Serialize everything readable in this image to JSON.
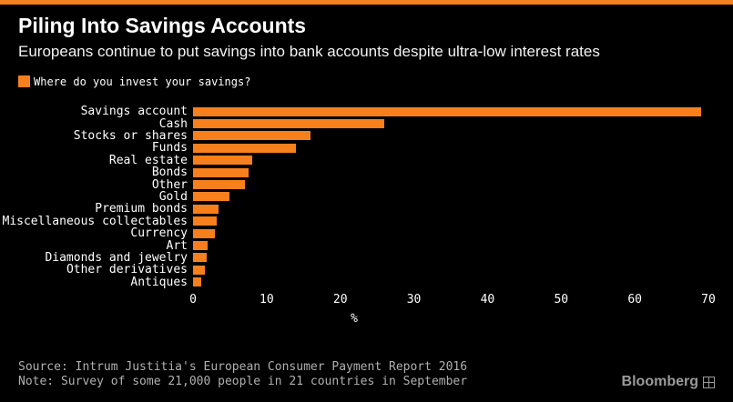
{
  "accent_color": "#f7801d",
  "background_color": "#000000",
  "header": {
    "title": "Piling Into Savings Accounts",
    "subtitle": "Europeans continue to put savings into bank accounts despite ultra-low interest rates"
  },
  "legend": {
    "label": "Where do you invest your savings?",
    "swatch_color": "#f7801d"
  },
  "chart_data": {
    "type": "bar",
    "orientation": "horizontal",
    "title": "Where do you invest your savings?",
    "categories": [
      "Savings account",
      "Cash",
      "Stocks or shares",
      "Funds",
      "Real estate",
      "Bonds",
      "Other",
      "Gold",
      "Premium bonds",
      "Miscellaneous collectables",
      "Currency",
      "Art",
      "Diamonds and jewelry",
      "Other derivatives",
      "Antiques"
    ],
    "values": [
      69,
      26,
      16,
      14,
      8,
      7.5,
      7,
      5,
      3.5,
      3.2,
      3,
      2,
      1.9,
      1.6,
      1.1
    ],
    "xlabel": "%",
    "ylabel": "",
    "xlim": [
      0,
      70
    ],
    "xticks": [
      0,
      10,
      20,
      30,
      40,
      50,
      60,
      70
    ],
    "grid": false,
    "bar_color": "#f7801d",
    "legend_position": "top-left"
  },
  "footer": {
    "source": "Source: Intrum Justitia's European Consumer Payment Report 2016",
    "note": "Note: Survey of some 21,000 people in 21 countries in September",
    "brand": "Bloomberg"
  }
}
